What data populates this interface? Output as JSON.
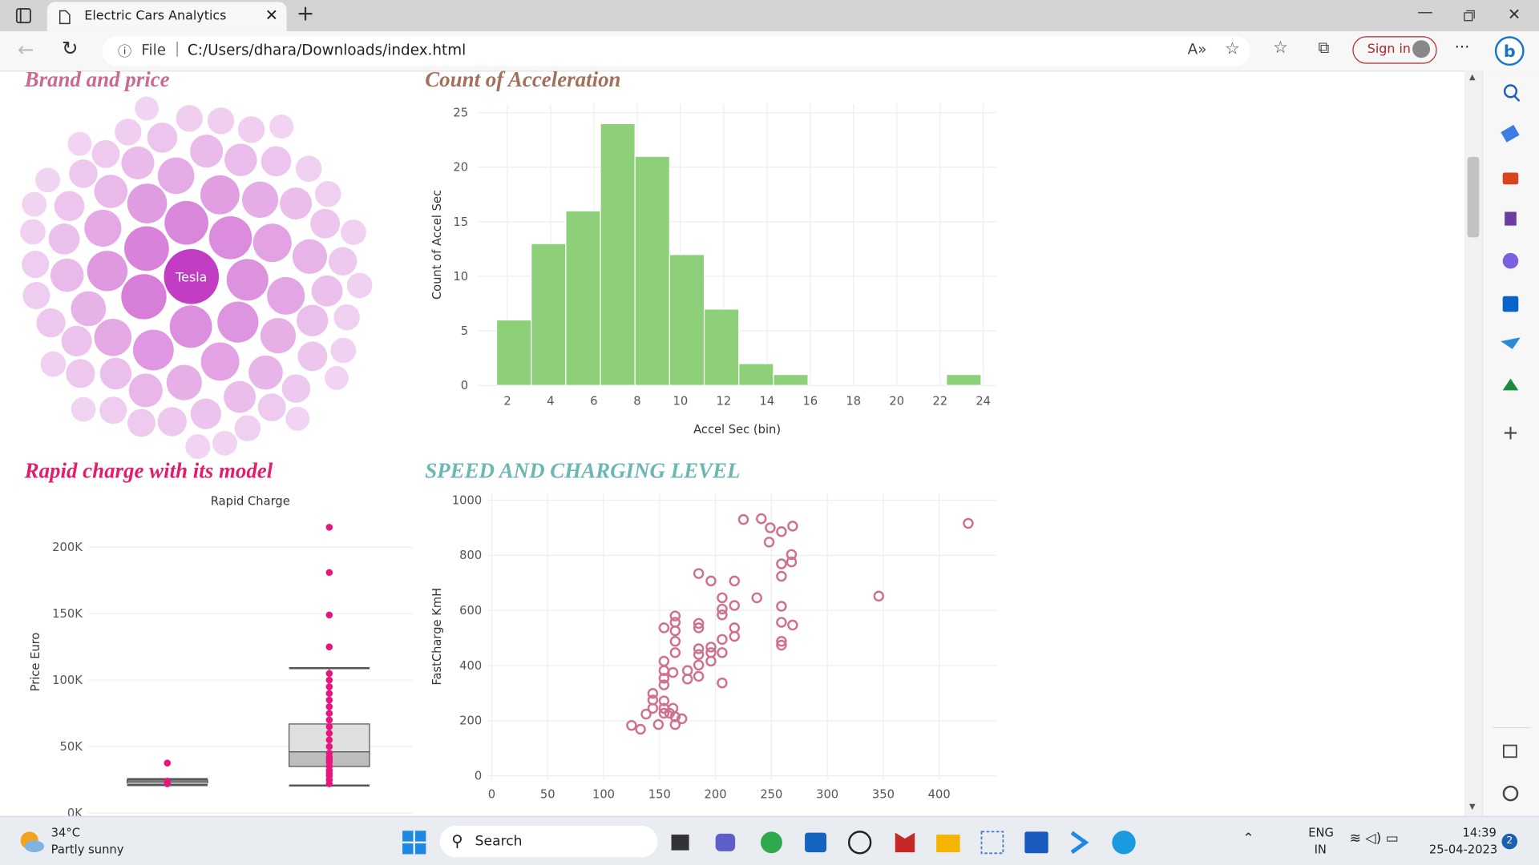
{
  "browser": {
    "tab_title": "Electric Cars Analytics",
    "scheme": "File",
    "url": "C:/Users/dhara/Downloads/index.html",
    "sign_in": "Sign in"
  },
  "taskbar": {
    "temperature": "34°C",
    "weather": "Partly sunny",
    "search": "Search",
    "language": "ENG",
    "region": "IN",
    "time": "14:39",
    "date": "25-04-2023",
    "notifications": "2"
  },
  "chart_data": [
    {
      "type": "bubble",
      "title": "Brand and price",
      "label": "Tesla",
      "color": "#c23cc4",
      "values": [
        100,
        60,
        58,
        55,
        52,
        50,
        48,
        46,
        45,
        44,
        42,
        40,
        38,
        38,
        36,
        35,
        34,
        33,
        32,
        30,
        30,
        29,
        28,
        27,
        26,
        25,
        25,
        24,
        24,
        23,
        22,
        22,
        21,
        21,
        20,
        20,
        19,
        19,
        18,
        18,
        18,
        17,
        17,
        16,
        16,
        16,
        15,
        15,
        15,
        14,
        14,
        14,
        13,
        13,
        13,
        12,
        12,
        12,
        12,
        11,
        11,
        11,
        11,
        10,
        10,
        10,
        10,
        10,
        9,
        9,
        9,
        9,
        9,
        8,
        8,
        8,
        8,
        8
      ]
    },
    {
      "type": "histogram",
      "title": "Count of Acceleration",
      "xlabel": "Accel Sec (bin)",
      "ylabel": "Count of Accel Sec",
      "color": "#8ed07a",
      "bins": [
        1.5,
        3.1,
        4.7,
        6.3,
        7.9,
        9.5,
        11.1,
        12.7,
        14.3,
        15.9,
        17.5,
        19.1,
        20.7,
        22.3,
        23.9
      ],
      "counts": [
        6,
        13,
        16,
        24,
        21,
        12,
        7,
        2,
        1,
        0,
        0,
        0,
        0,
        1
      ],
      "xlim": [
        0.64,
        24.6
      ],
      "xticks": [
        2,
        4,
        6,
        8,
        10,
        12,
        14,
        16,
        18,
        20,
        22,
        24
      ],
      "ylim": [
        0,
        25.8
      ],
      "yticks": [
        0,
        5,
        10,
        15,
        20,
        25
      ],
      "grid": true
    },
    {
      "type": "box",
      "title": "Rapid charge with its model",
      "subtitle": "Rapid Charge",
      "ylabel": "Price Euro",
      "color": "#e8157f",
      "categories": [
        null,
        null
      ],
      "boxes": [
        {
          "lower": 21000,
          "q1": 22500,
          "median": 24000,
          "q3": 25000,
          "upper": 25500,
          "points": [
            37600,
            24000,
            22000
          ]
        },
        {
          "lower": 20700,
          "q1": 35000,
          "median": 46000,
          "q3": 67000,
          "upper": 109000,
          "points": [
            215000,
            181000,
            149000,
            125000,
            105000,
            100000,
            95000,
            90000,
            85000,
            80000,
            75000,
            70000,
            65000,
            60000,
            55000,
            50000,
            45000,
            42000,
            40000,
            38000,
            35000,
            32000,
            30000,
            28000,
            25000,
            22000
          ]
        }
      ],
      "ylim": [
        0,
        228000
      ],
      "yticks": [
        {
          "value": 0,
          "label": "0K"
        },
        {
          "value": 50000,
          "label": "50K"
        },
        {
          "value": 100000,
          "label": "100K"
        },
        {
          "value": 150000,
          "label": "150K"
        },
        {
          "value": 200000,
          "label": "200K"
        }
      ],
      "grid": true
    },
    {
      "type": "scatter",
      "title": "SPEED AND CHARGING LEVEL",
      "ylabel": "FastCharge KmH",
      "color": "#d07090",
      "x": [
        225,
        241,
        249,
        259,
        269,
        248,
        426,
        346,
        268,
        268,
        259,
        259,
        185,
        196,
        217,
        237,
        206,
        206,
        206,
        217,
        259,
        259,
        269,
        217,
        217,
        206,
        259,
        259,
        206,
        206,
        185,
        185,
        164,
        164,
        164,
        154,
        164,
        164,
        185,
        196,
        196,
        196,
        185,
        185,
        185,
        175,
        175,
        154,
        154,
        154,
        154,
        162,
        144,
        144,
        144,
        154,
        154,
        162,
        164,
        170,
        138,
        125,
        133,
        149,
        164,
        154,
        159
      ],
      "y": [
        930,
        933,
        900,
        886,
        906,
        848,
        916,
        652,
        803,
        776,
        769,
        724,
        734,
        707,
        707,
        646,
        646,
        605,
        584,
        618,
        615,
        557,
        547,
        537,
        506,
        495,
        488,
        474,
        447,
        337,
        553,
        537,
        580,
        557,
        526,
        537,
        488,
        447,
        461,
        467,
        447,
        416,
        440,
        402,
        361,
        382,
        351,
        416,
        382,
        330,
        354,
        375,
        299,
        275,
        245,
        272,
        245,
        245,
        214,
        207,
        224,
        183,
        169,
        186,
        186,
        227,
        227
      ],
      "xlim": [
        -3.5,
        451
      ],
      "xticks": [
        0,
        50,
        100,
        150,
        200,
        250,
        300,
        350,
        400
      ],
      "ylim": [
        -14,
        1025
      ],
      "yticks": [
        0,
        200,
        400,
        600,
        800,
        1000
      ],
      "grid": true
    }
  ]
}
